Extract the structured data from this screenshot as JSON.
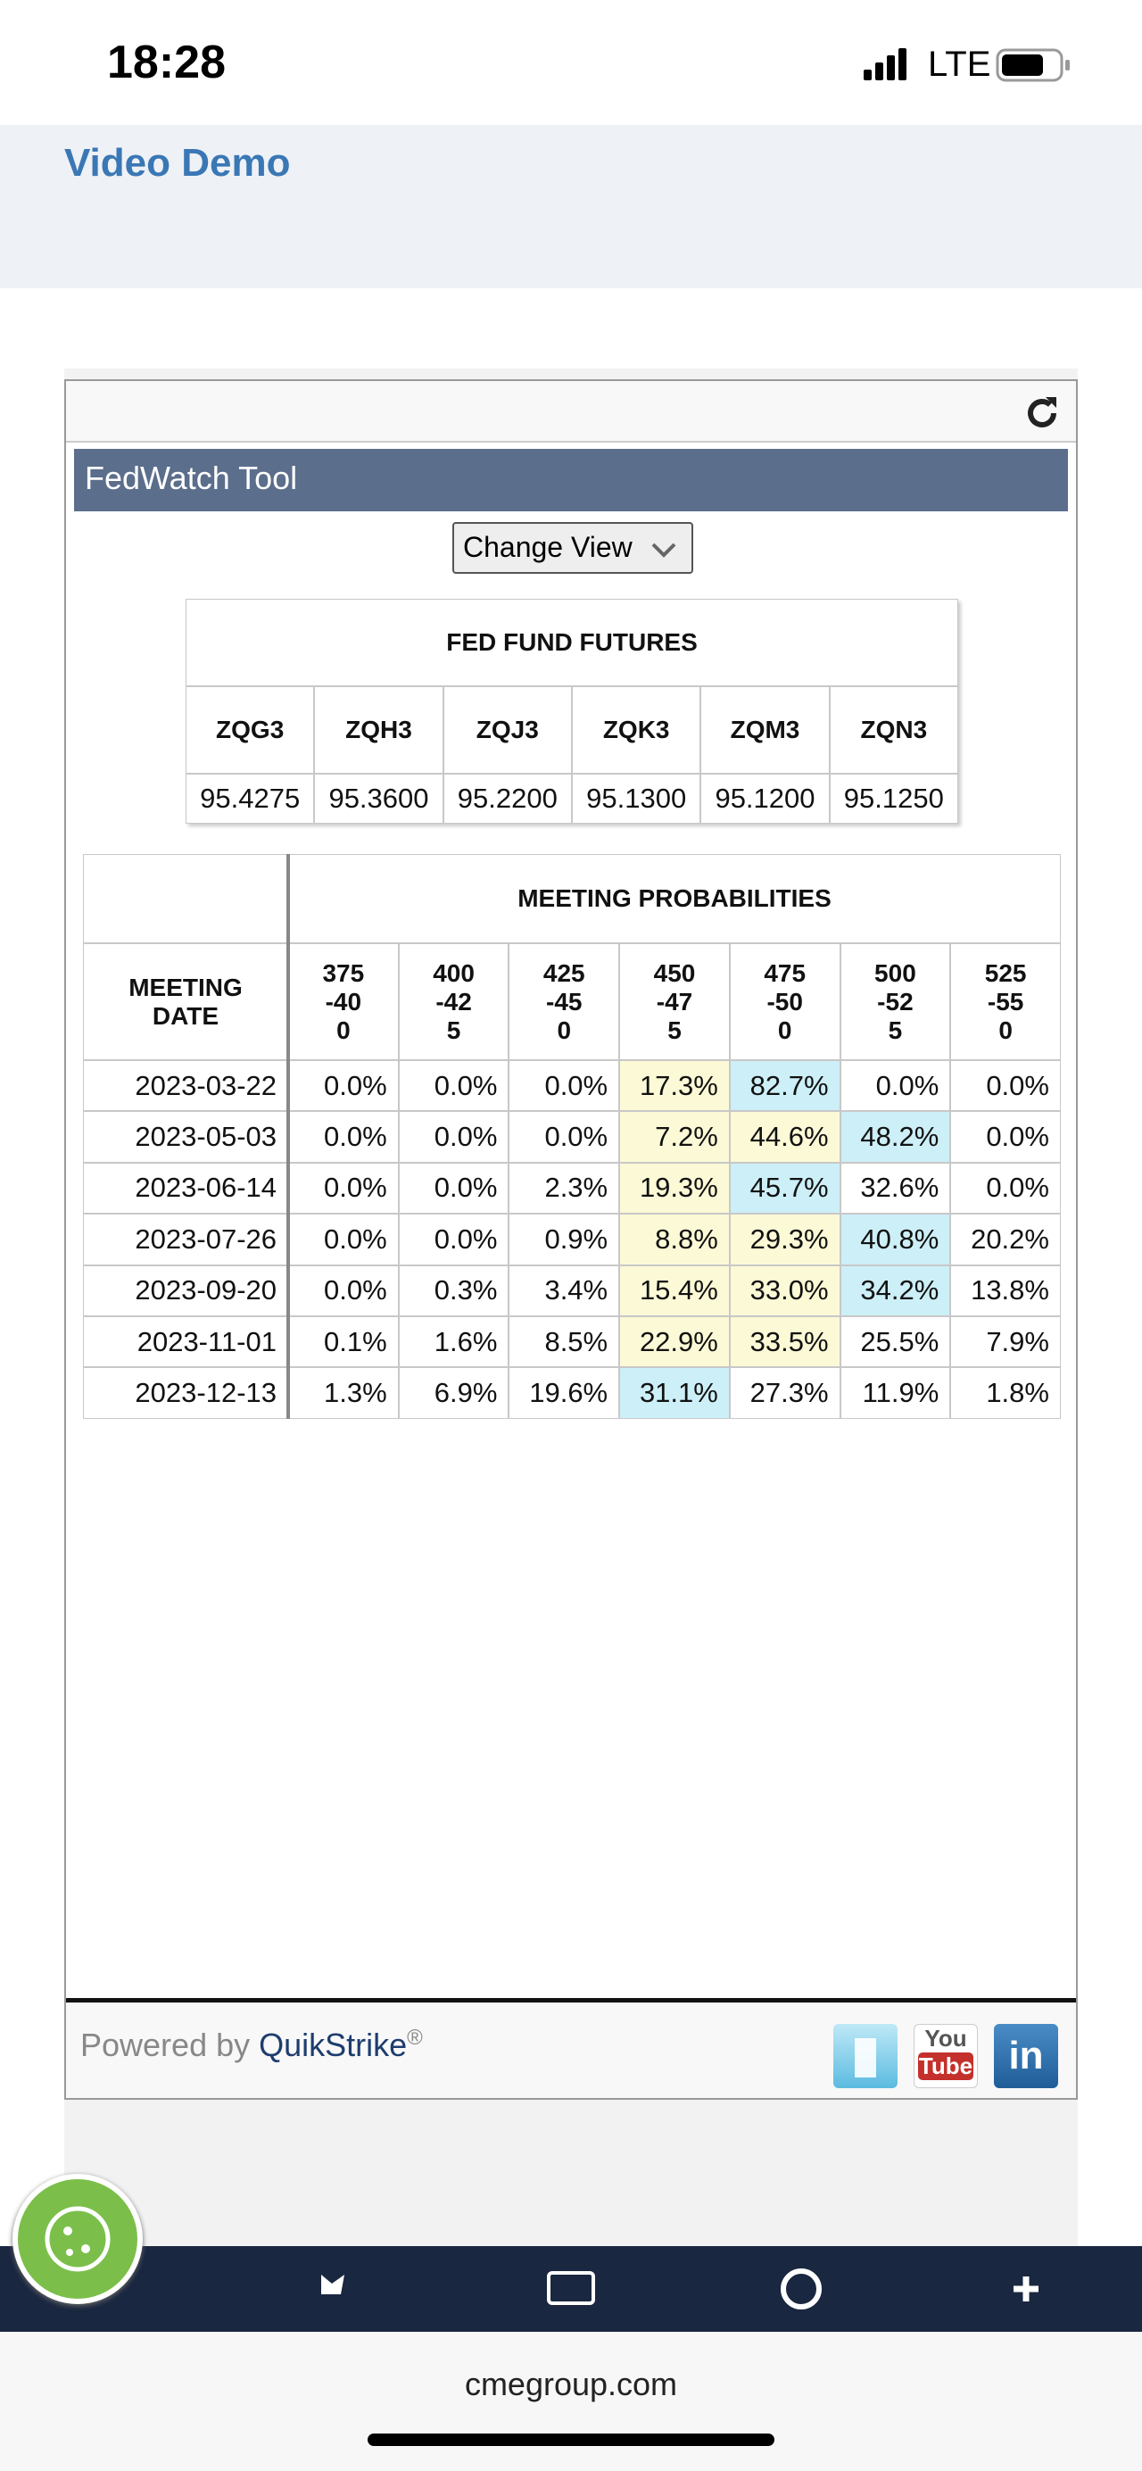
{
  "status_bar": {
    "time": "18:28",
    "network": "LTE"
  },
  "header": {
    "link": "Video Demo"
  },
  "widget": {
    "title": "FedWatch Tool",
    "button": "Change View",
    "futures": {
      "title": "FED FUND FUTURES",
      "columns": [
        "ZQG3",
        "ZQH3",
        "ZQJ3",
        "ZQK3",
        "ZQM3",
        "ZQN3"
      ],
      "values": [
        "95.4275",
        "95.3600",
        "95.2200",
        "95.1300",
        "95.1200",
        "95.1250"
      ]
    },
    "probabilities": {
      "title": "MEETING PROBABILITIES",
      "date_header": "MEETING DATE",
      "columns": [
        "375-400",
        "400-425",
        "425-450",
        "450-475",
        "475-500",
        "500-525",
        "525-550"
      ],
      "rows": [
        {
          "date": "2023-03-22",
          "cells": [
            "0.0%",
            "0.0%",
            "0.0%",
            "17.3%",
            "82.7%",
            "0.0%",
            "0.0%"
          ],
          "highlights": [
            null,
            null,
            null,
            "#fcf9d6",
            "#cdeff7",
            null,
            null
          ]
        },
        {
          "date": "2023-05-03",
          "cells": [
            "0.0%",
            "0.0%",
            "0.0%",
            "7.2%",
            "44.6%",
            "48.2%",
            "0.0%"
          ],
          "highlights": [
            null,
            null,
            null,
            "#fcf9d6",
            "#fcf9d6",
            "#cdeff7",
            null
          ]
        },
        {
          "date": "2023-06-14",
          "cells": [
            "0.0%",
            "0.0%",
            "2.3%",
            "19.3%",
            "45.7%",
            "32.6%",
            "0.0%"
          ],
          "highlights": [
            null,
            null,
            null,
            "#fcf9d6",
            "#cdeff7",
            null,
            null
          ]
        },
        {
          "date": "2023-07-26",
          "cells": [
            "0.0%",
            "0.0%",
            "0.9%",
            "8.8%",
            "29.3%",
            "40.8%",
            "20.2%"
          ],
          "highlights": [
            null,
            null,
            null,
            "#fcf9d6",
            "#fcf9d6",
            "#cdeff7",
            null
          ]
        },
        {
          "date": "2023-09-20",
          "cells": [
            "0.0%",
            "0.3%",
            "3.4%",
            "15.4%",
            "33.0%",
            "34.2%",
            "13.8%"
          ],
          "highlights": [
            null,
            null,
            null,
            "#fcf9d6",
            "#fcf9d6",
            "#cdeff7",
            null
          ]
        },
        {
          "date": "2023-11-01",
          "cells": [
            "0.1%",
            "1.6%",
            "8.5%",
            "22.9%",
            "33.5%",
            "25.5%",
            "7.9%"
          ],
          "highlights": [
            null,
            null,
            null,
            "#fcf9d6",
            "#fcf9d6",
            null,
            null
          ]
        },
        {
          "date": "2023-12-13",
          "cells": [
            "1.3%",
            "6.9%",
            "19.6%",
            "31.1%",
            "27.3%",
            "11.9%",
            "1.8%"
          ],
          "highlights": [
            null,
            null,
            null,
            "#cdeff7",
            null,
            null,
            null
          ]
        }
      ]
    },
    "footer": {
      "powered_by": "Powered by",
      "brand": "QuikStrike",
      "mark": "®",
      "youtube_top": "You",
      "youtube_bottom": "Tube",
      "linkedin": "in"
    }
  },
  "browser": {
    "url": "cmegroup.com"
  }
}
